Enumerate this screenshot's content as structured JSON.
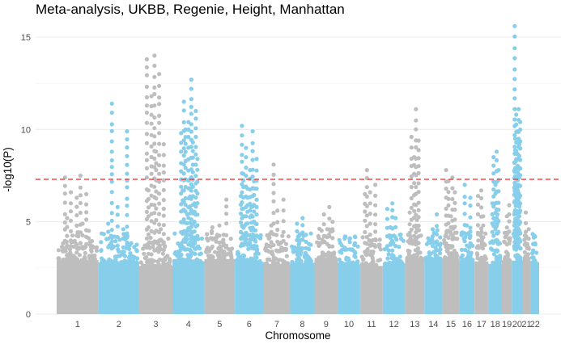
{
  "chart_data": {
    "type": "scatter",
    "title": "Meta-analysis, UKBB, Regenie, Height, Manhattan",
    "xlabel": "Chromosome",
    "ylabel": "-log10(P)",
    "ylim": [
      0,
      15.7
    ],
    "y_ticks": [
      0,
      5,
      10,
      15
    ],
    "grid": true,
    "significance_line": {
      "value": 7.3,
      "color": "#f04040",
      "style": "dashed"
    },
    "colors": {
      "odd": "#bebebe",
      "even": "#87ceeb"
    },
    "chromosomes": [
      {
        "label": "1",
        "length": 249,
        "peaks": [
          7.4,
          7.5,
          6.6,
          6.5,
          6.3,
          5.2,
          4.9
        ]
      },
      {
        "label": "2",
        "length": 243,
        "peaks": [
          11.4,
          9.9,
          5.8,
          4.9,
          4.6,
          4.2
        ]
      },
      {
        "label": "3",
        "length": 198,
        "peaks": [
          14.0,
          13.8,
          13.0,
          11.8,
          9.2,
          8.8,
          6.7,
          4.6
        ]
      },
      {
        "label": "4",
        "length": 191,
        "peaks": [
          12.7,
          11.5,
          11.0,
          10.4,
          9.8,
          9.3,
          10.0,
          8.4,
          7.3,
          6.7,
          6.0,
          5.4
        ]
      },
      {
        "label": "5",
        "length": 181,
        "peaks": [
          6.2,
          4.8,
          4.7,
          4.3
        ]
      },
      {
        "label": "6",
        "length": 171,
        "peaks": [
          10.2,
          9.9,
          9.0,
          8.4,
          7.8,
          7.6,
          7.2,
          6.8,
          6.4,
          5.8,
          5.3,
          4.9
        ]
      },
      {
        "label": "7",
        "length": 159,
        "peaks": [
          8.1,
          6.2,
          5.6,
          4.8
        ]
      },
      {
        "label": "8",
        "length": 145,
        "peaks": [
          5.2,
          4.9,
          4.3,
          4.0
        ]
      },
      {
        "label": "9",
        "length": 138,
        "peaks": [
          5.8,
          5.4,
          5.0,
          4.6
        ]
      },
      {
        "label": "10",
        "length": 134,
        "peaks": [
          4.2,
          3.9,
          3.6
        ]
      },
      {
        "label": "11",
        "length": 135,
        "peaks": [
          7.8,
          7.0,
          6.6,
          6.5
        ]
      },
      {
        "label": "12",
        "length": 133,
        "peaks": [
          6.0,
          5.7,
          5.2,
          4.7
        ]
      },
      {
        "label": "13",
        "length": 115,
        "peaks": [
          11.1,
          9.6,
          9.4,
          8.5,
          5.5,
          5.1
        ]
      },
      {
        "label": "14",
        "length": 107,
        "peaks": [
          5.4,
          4.6,
          3.9
        ]
      },
      {
        "label": "15",
        "length": 102,
        "peaks": [
          7.8,
          7.4,
          7.2,
          6.6,
          5.3
        ]
      },
      {
        "label": "16",
        "length": 90,
        "peaks": [
          7.0,
          6.3,
          4.8
        ]
      },
      {
        "label": "17",
        "length": 83,
        "peaks": [
          6.7,
          6.4,
          5.3
        ]
      },
      {
        "label": "18",
        "length": 80,
        "peaks": [
          8.8,
          8.5,
          7.8,
          7.0,
          6.0,
          5.4
        ]
      },
      {
        "label": "19",
        "length": 59,
        "peaks": [
          5.9,
          5.3,
          4.4
        ]
      },
      {
        "label": "20",
        "length": 64,
        "peaks": [
          15.6,
          11.1,
          10.8,
          10.4,
          9.9,
          9.5,
          9.2,
          8.7,
          8.2,
          7.0,
          6.5,
          6.0
        ]
      },
      {
        "label": "21",
        "length": 48,
        "peaks": [
          5.5,
          4.6,
          3.8
        ]
      },
      {
        "label": "22",
        "length": 51,
        "peaks": [
          4.2,
          3.8,
          3.4
        ]
      }
    ]
  }
}
